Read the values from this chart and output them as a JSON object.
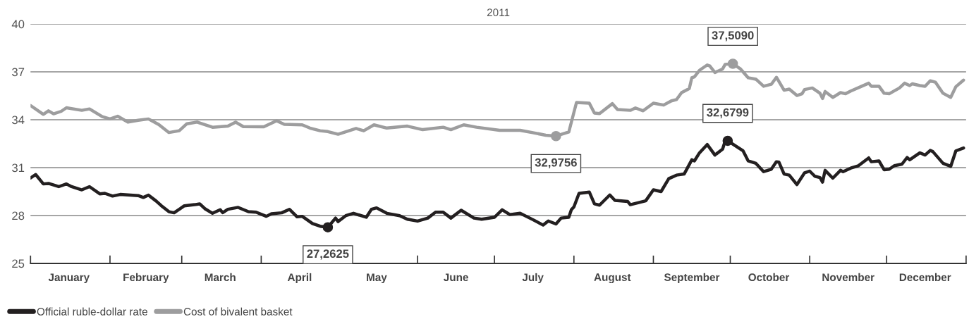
{
  "chart_data": {
    "type": "line",
    "title": "2011",
    "xlim": [
      "2011-01-01",
      "2012-01-01"
    ],
    "xticks": [
      {
        "value": "2011-01-01",
        "label": null
      },
      {
        "value": "2011-01-16",
        "label": "January"
      },
      {
        "value": "2011-02-01",
        "label": null
      },
      {
        "value": "2011-02-15",
        "label": "February"
      },
      {
        "value": "2011-03-01",
        "label": null
      },
      {
        "value": "2011-03-16",
        "label": "March"
      },
      {
        "value": "2011-04-01",
        "label": null
      },
      {
        "value": "2011-04-16",
        "label": "April"
      },
      {
        "value": "2011-05-01",
        "label": null
      },
      {
        "value": "2011-05-16",
        "label": "May"
      },
      {
        "value": "2011-06-01",
        "label": null
      },
      {
        "value": "2011-06-16",
        "label": "June"
      },
      {
        "value": "2011-07-01",
        "label": null
      },
      {
        "value": "2011-07-16",
        "label": "July"
      },
      {
        "value": "2011-08-01",
        "label": null
      },
      {
        "value": "2011-08-16",
        "label": "August"
      },
      {
        "value": "2011-09-01",
        "label": null
      },
      {
        "value": "2011-09-16",
        "label": "September"
      },
      {
        "value": "2011-10-01",
        "label": null
      },
      {
        "value": "2011-10-16",
        "label": "October"
      },
      {
        "value": "2011-11-01",
        "label": null
      },
      {
        "value": "2011-11-16",
        "label": "November"
      },
      {
        "value": "2011-12-01",
        "label": null
      },
      {
        "value": "2011-12-16",
        "label": "December"
      },
      {
        "value": "2012-01-01",
        "label": null
      }
    ],
    "ylim": [
      25,
      40
    ],
    "yticks": [
      25,
      28,
      31,
      34,
      37,
      40
    ],
    "grid": "y",
    "legend": "bottom left",
    "line_style": "solid",
    "series": [
      {
        "name": "Official ruble-dollar rate",
        "color": "#231f20",
        "x": [
          "2011-01-01",
          "2011-01-03",
          "2011-01-06",
          "2011-01-08",
          "2011-01-12",
          "2011-01-15",
          "2011-01-17",
          "2011-01-21",
          "2011-01-24",
          "2011-01-28",
          "2011-01-30",
          "2011-02-02",
          "2011-02-05",
          "2011-02-12",
          "2011-02-14",
          "2011-02-16",
          "2011-02-19",
          "2011-02-21",
          "2011-02-24",
          "2011-02-26",
          "2011-03-02",
          "2011-03-06",
          "2011-03-08",
          "2011-03-10",
          "2011-03-13",
          "2011-03-16",
          "2011-03-17",
          "2011-03-19",
          "2011-03-23",
          "2011-03-27",
          "2011-03-30",
          "2011-04-03",
          "2011-04-05",
          "2011-04-09",
          "2011-04-12",
          "2011-04-15",
          "2011-04-17",
          "2011-04-21",
          "2011-04-24",
          "2011-04-27",
          "2011-04-30",
          "2011-05-01",
          "2011-05-04",
          "2011-05-07",
          "2011-05-12",
          "2011-05-14",
          "2011-05-16",
          "2011-05-20",
          "2011-05-25",
          "2011-05-28",
          "2011-06-01",
          "2011-06-05",
          "2011-06-08",
          "2011-06-11",
          "2011-06-14",
          "2011-06-18",
          "2011-06-23",
          "2011-06-26",
          "2011-07-01",
          "2011-07-04",
          "2011-07-07",
          "2011-07-11",
          "2011-07-16",
          "2011-07-20",
          "2011-07-22",
          "2011-07-25",
          "2011-07-27",
          "2011-07-30",
          "2011-07-31",
          "2011-08-01",
          "2011-08-03",
          "2011-08-07",
          "2011-08-09",
          "2011-08-11",
          "2011-08-15",
          "2011-08-17",
          "2011-08-22",
          "2011-08-23",
          "2011-08-29",
          "2011-09-01",
          "2011-09-04",
          "2011-09-07",
          "2011-09-10",
          "2011-09-13",
          "2011-09-16",
          "2011-09-17",
          "2011-09-19",
          "2011-09-22",
          "2011-09-25",
          "2011-09-28",
          "2011-09-29",
          "2011-09-30",
          "2011-10-06",
          "2011-10-08",
          "2011-10-11",
          "2011-10-14",
          "2011-10-17",
          "2011-10-19",
          "2011-10-20",
          "2011-10-22",
          "2011-10-24",
          "2011-10-27",
          "2011-10-30",
          "2011-11-01",
          "2011-11-03",
          "2011-11-05",
          "2011-11-06",
          "2011-11-07",
          "2011-11-10",
          "2011-11-13",
          "2011-11-14",
          "2011-11-17",
          "2011-11-20",
          "2011-11-24",
          "2011-11-25",
          "2011-11-28",
          "2011-11-30",
          "2011-12-02",
          "2011-12-04",
          "2011-12-07",
          "2011-12-09",
          "2011-12-10",
          "2011-12-12",
          "2011-12-14",
          "2011-12-16",
          "2011-12-18",
          "2011-12-19",
          "2011-12-23",
          "2011-12-26",
          "2011-12-28",
          "2011-12-31"
        ],
        "values": [
          30.35,
          30.57,
          29.98,
          30.01,
          29.81,
          29.98,
          29.81,
          29.61,
          29.81,
          29.36,
          29.39,
          29.22,
          29.32,
          29.25,
          29.13,
          29.28,
          28.91,
          28.62,
          28.24,
          28.17,
          28.61,
          28.68,
          28.73,
          28.43,
          28.14,
          28.36,
          28.18,
          28.39,
          28.51,
          28.24,
          28.21,
          27.95,
          28.11,
          28.17,
          28.39,
          27.92,
          27.95,
          27.5,
          27.33,
          27.2625,
          27.84,
          27.62,
          27.99,
          28.14,
          27.89,
          28.39,
          28.48,
          28.14,
          27.99,
          27.77,
          27.65,
          27.84,
          28.21,
          28.21,
          27.84,
          28.33,
          27.84,
          27.77,
          27.89,
          28.36,
          28.06,
          28.14,
          27.74,
          27.4,
          27.66,
          27.47,
          27.84,
          27.89,
          28.36,
          28.54,
          29.39,
          29.47,
          28.73,
          28.65,
          29.29,
          28.95,
          28.88,
          28.68,
          28.92,
          29.61,
          29.5,
          30.31,
          30.53,
          30.6,
          31.49,
          31.42,
          31.93,
          32.45,
          31.79,
          32.16,
          32.67,
          32.6799,
          32.05,
          31.42,
          31.27,
          30.75,
          30.9,
          31.37,
          31.34,
          30.6,
          30.53,
          29.94,
          30.68,
          30.78,
          30.46,
          30.38,
          30.09,
          30.83,
          30.34,
          30.83,
          30.75,
          30.97,
          31.12,
          31.61,
          31.37,
          31.42,
          30.87,
          30.9,
          31.12,
          31.22,
          31.64,
          31.49,
          31.71,
          31.93,
          31.79,
          32.08,
          32.01,
          31.27,
          31.08,
          32.05,
          32.23
        ]
      },
      {
        "name": "Cost of bivalent basket",
        "color": "#9d9d9e",
        "x": [
          "2011-01-01",
          "2011-01-06",
          "2011-01-08",
          "2011-01-10",
          "2011-01-13",
          "2011-01-15",
          "2011-01-21",
          "2011-01-24",
          "2011-01-29",
          "2011-02-01",
          "2011-02-04",
          "2011-02-08",
          "2011-02-12",
          "2011-02-16",
          "2011-02-20",
          "2011-02-24",
          "2011-02-28",
          "2011-03-03",
          "2011-03-07",
          "2011-03-13",
          "2011-03-19",
          "2011-03-22",
          "2011-03-25",
          "2011-04-02",
          "2011-04-07",
          "2011-04-10",
          "2011-04-17",
          "2011-04-20",
          "2011-04-24",
          "2011-04-27",
          "2011-05-01",
          "2011-05-08",
          "2011-05-11",
          "2011-05-15",
          "2011-05-20",
          "2011-05-28",
          "2011-06-03",
          "2011-06-11",
          "2011-06-14",
          "2011-06-19",
          "2011-06-24",
          "2011-07-03",
          "2011-07-11",
          "2011-07-16",
          "2011-07-21",
          "2011-07-25",
          "2011-07-30",
          "2011-08-02",
          "2011-08-07",
          "2011-08-09",
          "2011-08-11",
          "2011-08-16",
          "2011-08-18",
          "2011-08-23",
          "2011-08-25",
          "2011-08-28",
          "2011-09-01",
          "2011-09-05",
          "2011-09-08",
          "2011-09-10",
          "2011-09-12",
          "2011-09-15",
          "2011-09-16",
          "2011-09-17",
          "2011-09-19",
          "2011-09-22",
          "2011-09-23",
          "2011-09-25",
          "2011-09-28",
          "2011-09-29",
          "2011-10-02",
          "2011-10-05",
          "2011-10-08",
          "2011-10-11",
          "2011-10-14",
          "2011-10-17",
          "2011-10-19",
          "2011-10-22",
          "2011-10-24",
          "2011-10-27",
          "2011-10-29",
          "2011-10-30",
          "2011-11-02",
          "2011-11-05",
          "2011-11-06",
          "2011-11-07",
          "2011-11-10",
          "2011-11-13",
          "2011-11-15",
          "2011-11-17",
          "2011-11-24",
          "2011-11-25",
          "2011-11-28",
          "2011-11-30",
          "2011-12-02",
          "2011-12-06",
          "2011-12-08",
          "2011-12-10",
          "2011-12-11",
          "2011-12-14",
          "2011-12-16",
          "2011-12-18",
          "2011-12-20",
          "2011-12-23",
          "2011-12-26",
          "2011-12-28",
          "2011-12-31"
        ],
        "values": [
          34.89,
          34.34,
          34.56,
          34.37,
          34.53,
          34.75,
          34.59,
          34.68,
          34.19,
          34.05,
          34.22,
          33.85,
          33.97,
          34.05,
          33.7,
          33.2,
          33.31,
          33.75,
          33.85,
          33.53,
          33.6,
          33.85,
          33.57,
          33.56,
          33.93,
          33.71,
          33.68,
          33.48,
          33.31,
          33.26,
          33.09,
          33.45,
          33.31,
          33.68,
          33.48,
          33.6,
          33.38,
          33.53,
          33.38,
          33.68,
          33.53,
          33.34,
          33.34,
          33.19,
          33.03,
          32.9756,
          33.23,
          35.08,
          35.04,
          34.42,
          34.39,
          35.01,
          34.64,
          34.59,
          34.74,
          34.56,
          35.04,
          34.92,
          35.18,
          35.26,
          35.7,
          35.95,
          36.63,
          36.69,
          37.1,
          37.43,
          37.37,
          36.96,
          37.18,
          37.47,
          37.509,
          37.18,
          36.63,
          36.54,
          36.1,
          36.22,
          36.66,
          35.85,
          35.92,
          35.52,
          35.63,
          35.89,
          35.99,
          35.66,
          35.33,
          35.77,
          35.4,
          35.7,
          35.63,
          35.8,
          36.29,
          36.1,
          36.1,
          35.66,
          35.63,
          35.99,
          36.29,
          36.14,
          36.25,
          36.14,
          36.1,
          36.44,
          36.36,
          35.66,
          35.4,
          36.07,
          36.48
        ]
      }
    ],
    "annotations": [
      {
        "text": "27,2625",
        "x": "2011-04-27",
        "y": 27.2625
      },
      {
        "text": "32,9756",
        "x": "2011-07-25",
        "y": 32.9756
      },
      {
        "text": "37,5090",
        "x": "2011-10-02",
        "y": 37.509
      },
      {
        "text": "32,6799",
        "x": "2011-09-30",
        "y": 32.6799
      }
    ]
  }
}
